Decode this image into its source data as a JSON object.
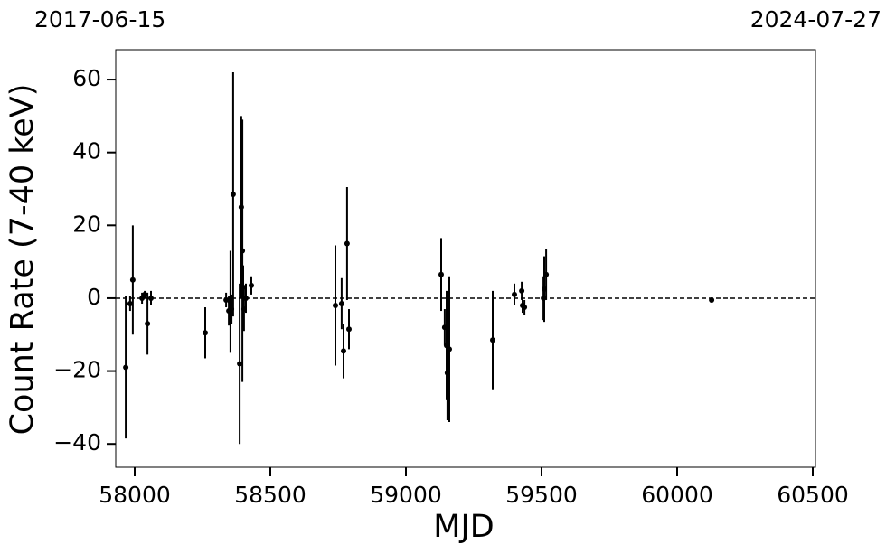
{
  "chart_data": {
    "type": "scatter",
    "annotations": [
      "2017-06-15",
      "2024-07-27"
    ],
    "xlabel": "MJD",
    "ylabel": "Count Rate (7-40 keV)",
    "x": [
      57967,
      57983,
      57993,
      58027,
      58037,
      58047,
      58060,
      58260,
      58337,
      58347,
      58353,
      58363,
      58357,
      58387,
      58393,
      58397,
      58400,
      58403,
      58410,
      58430,
      58740,
      58763,
      58770,
      58783,
      58790,
      59130,
      59143,
      59150,
      59153,
      59160,
      59320,
      59400,
      59427,
      59430,
      59437,
      59507,
      59510,
      59517,
      60127
    ],
    "values": [
      -19,
      -1.5,
      5,
      0,
      1,
      -7,
      0,
      -9.5,
      -0.5,
      -3.5,
      -1,
      28.5,
      -3,
      -18,
      25,
      13,
      3,
      -3,
      0,
      3.5,
      -2,
      -1.5,
      -14.5,
      15,
      -8.5,
      6.5,
      -8,
      -13,
      -20.5,
      -14,
      -11.5,
      1,
      2,
      -2,
      -2.5,
      0,
      2.5,
      6.5,
      -0.5
    ],
    "errors": [
      19.5,
      2,
      15,
      1.5,
      1,
      8.5,
      2,
      7,
      2,
      4,
      14,
      33.5,
      4,
      22,
      25,
      36,
      6,
      6,
      4,
      2.5,
      16.5,
      7,
      7.5,
      15.5,
      5.5,
      10,
      5,
      15,
      13,
      20,
      13.5,
      3,
      2.5,
      2,
      2,
      6,
      9,
      7,
      0.5
    ],
    "color": "#000000",
    "hline": 0,
    "xlim": [
      57930,
      60510
    ],
    "ylim": [
      -46.4,
      68.2
    ],
    "xticks": [
      58000,
      58500,
      59000,
      59500,
      60000,
      60500
    ],
    "yticks": [
      {
        "value": -40,
        "label": "−40"
      },
      {
        "value": -20,
        "label": "−20"
      },
      0,
      20,
      40,
      60
    ]
  }
}
